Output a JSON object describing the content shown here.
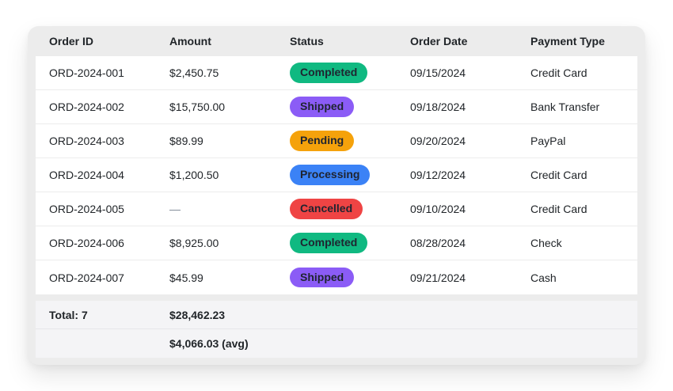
{
  "table": {
    "columns": [
      "Order ID",
      "Amount",
      "Status",
      "Order Date",
      "Payment Type"
    ],
    "rows": [
      {
        "order_id": "ORD-2024-001",
        "amount": "$2,450.75",
        "status": "Completed",
        "order_date": "09/15/2024",
        "payment_type": "Credit Card"
      },
      {
        "order_id": "ORD-2024-002",
        "amount": "$15,750.00",
        "status": "Shipped",
        "order_date": "09/18/2024",
        "payment_type": "Bank Transfer"
      },
      {
        "order_id": "ORD-2024-003",
        "amount": "$89.99",
        "status": "Pending",
        "order_date": "09/20/2024",
        "payment_type": "PayPal"
      },
      {
        "order_id": "ORD-2024-004",
        "amount": "$1,200.50",
        "status": "Processing",
        "order_date": "09/12/2024",
        "payment_type": "Credit Card"
      },
      {
        "order_id": "ORD-2024-005",
        "amount": "—",
        "status": "Cancelled",
        "order_date": "09/10/2024",
        "payment_type": "Credit Card"
      },
      {
        "order_id": "ORD-2024-006",
        "amount": "$8,925.00",
        "status": "Completed",
        "order_date": "08/28/2024",
        "payment_type": "Check"
      },
      {
        "order_id": "ORD-2024-007",
        "amount": "$45.99",
        "status": "Shipped",
        "order_date": "09/21/2024",
        "payment_type": "Cash"
      }
    ],
    "footer": {
      "total_label": "Total: 7",
      "total_amount": "$28,462.23",
      "avg_amount": "$4,066.03 (avg)"
    }
  },
  "status_colors": {
    "Completed": "#10b981",
    "Shipped": "#8b5cf6",
    "Pending": "#f5a20b",
    "Processing": "#3b82f6",
    "Cancelled": "#ef4444"
  },
  "colors": {
    "card_background": "#ececec",
    "row_background": "#ffffff",
    "footer_background": "#f4f4f6",
    "text": "#212529",
    "muted_text": "#7c8694"
  }
}
